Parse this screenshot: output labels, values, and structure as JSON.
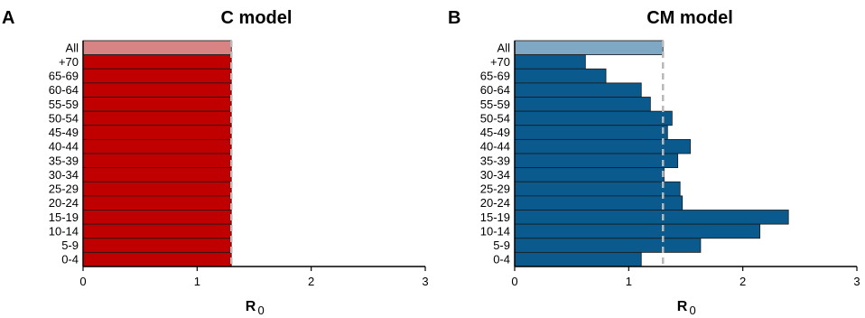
{
  "chart_data": [
    {
      "type": "bar",
      "orientation": "horizontal",
      "panel_label": "A",
      "title": "C model",
      "xlabel": "R",
      "xlabel_subscript": "0",
      "xlim": [
        0,
        3
      ],
      "xticks": [
        0,
        1,
        2,
        3
      ],
      "reference_line": 1.3,
      "categories": [
        "All",
        "+70",
        "65-69",
        "60-64",
        "55-59",
        "50-54",
        "45-49",
        "40-44",
        "35-39",
        "30-34",
        "25-29",
        "20-24",
        "15-19",
        "10-14",
        "5-9",
        "0-4"
      ],
      "values": [
        1.3,
        1.3,
        1.3,
        1.3,
        1.3,
        1.3,
        1.3,
        1.3,
        1.3,
        1.3,
        1.3,
        1.3,
        1.3,
        1.3,
        1.3,
        1.3
      ],
      "colors": {
        "all": "#d98484",
        "groups": "#c00000"
      },
      "grid": false
    },
    {
      "type": "bar",
      "orientation": "horizontal",
      "panel_label": "B",
      "title": "CM model",
      "xlabel": "R",
      "xlabel_subscript": "0",
      "xlim": [
        0,
        3
      ],
      "xticks": [
        0,
        1,
        2,
        3
      ],
      "reference_line": 1.3,
      "categories": [
        "All",
        "+70",
        "65-69",
        "60-64",
        "55-59",
        "50-54",
        "45-49",
        "40-44",
        "35-39",
        "30-34",
        "25-29",
        "20-24",
        "15-19",
        "10-14",
        "5-9",
        "0-4"
      ],
      "values": [
        1.3,
        0.62,
        0.8,
        1.11,
        1.19,
        1.38,
        1.34,
        1.54,
        1.43,
        1.31,
        1.45,
        1.47,
        2.4,
        2.15,
        1.63,
        1.11
      ],
      "colors": {
        "all": "#7fa8c4",
        "groups": "#0a5a8e"
      },
      "grid": false
    }
  ]
}
